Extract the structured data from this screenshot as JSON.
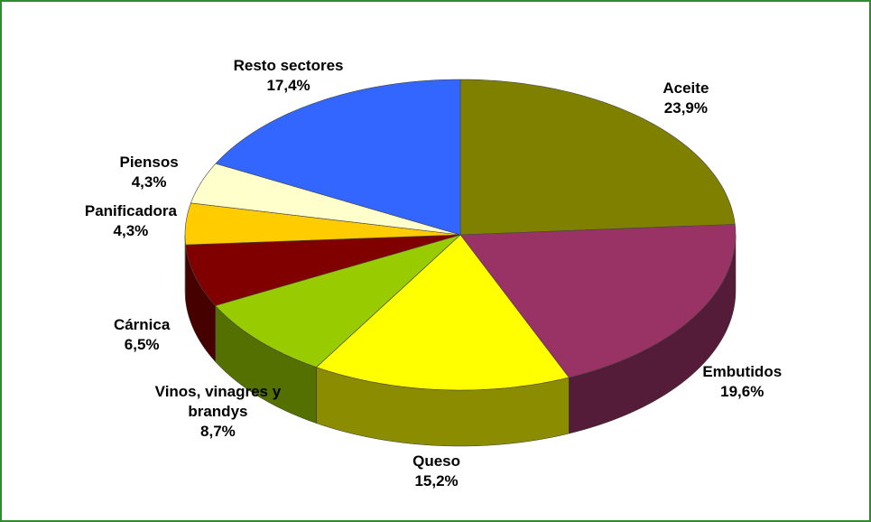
{
  "chart_data": {
    "type": "pie",
    "categories": [
      "Aceite",
      "Embutidos",
      "Queso",
      "Vinos, vinagres y brandys",
      "Cárnica",
      "Panificadora",
      "Piensos",
      "Resto sectores"
    ],
    "values": [
      23.9,
      19.6,
      15.2,
      8.7,
      6.5,
      4.3,
      4.3,
      17.4
    ],
    "value_labels": [
      "23,9%",
      "19,6%",
      "15,2%",
      "8,7%",
      "6,5%",
      "4,3%",
      "4,3%",
      "17,4%"
    ],
    "colors": [
      "#808000",
      "#993366",
      "#ffff00",
      "#99cc00",
      "#800000",
      "#ffcc00",
      "#ffffcc",
      "#3366ff"
    ]
  }
}
